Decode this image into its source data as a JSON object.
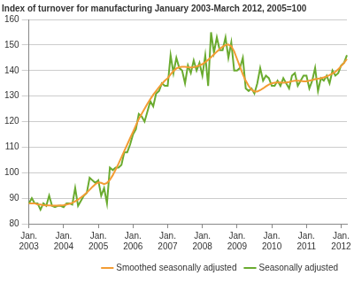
{
  "chart_data": {
    "type": "line",
    "title": "Index of turnover for manufacturing January 2003-March 2012, 2005=100",
    "categories": [
      "Jan. 2003",
      null,
      null,
      null,
      null,
      null,
      null,
      null,
      null,
      null,
      null,
      null,
      "Jan. 2004",
      null,
      null,
      null,
      null,
      null,
      null,
      null,
      null,
      null,
      null,
      null,
      "Jan. 2005",
      null,
      null,
      null,
      null,
      null,
      null,
      null,
      null,
      null,
      null,
      null,
      "Jan. 2006",
      null,
      null,
      null,
      null,
      null,
      null,
      null,
      null,
      null,
      null,
      null,
      "Jan. 2007",
      null,
      null,
      null,
      null,
      null,
      null,
      null,
      null,
      null,
      null,
      null,
      "Jan. 2008",
      null,
      null,
      null,
      null,
      null,
      null,
      null,
      null,
      null,
      null,
      null,
      "Jan. 2009",
      null,
      null,
      null,
      null,
      null,
      null,
      null,
      null,
      null,
      null,
      null,
      "Jan. 2010",
      null,
      null,
      null,
      null,
      null,
      null,
      null,
      null,
      null,
      null,
      null,
      "Jan. 2011",
      null,
      null,
      null,
      null,
      null,
      null,
      null,
      null,
      null,
      null,
      null,
      "Jan. 2012",
      null,
      null
    ],
    "series": [
      {
        "name": "Smoothed seasonally adjusted",
        "color": "#f39c34",
        "marker": "none",
        "line_style": "solid",
        "values": [
          88,
          88,
          88,
          87.5,
          87.5,
          87.3,
          87.2,
          87.2,
          87.1,
          87.1,
          87.1,
          87.2,
          87.3,
          87.5,
          87.8,
          88.2,
          88.8,
          89.5,
          90.3,
          91.2,
          92.2,
          93.3,
          94.5,
          95.5,
          96.2,
          96,
          95.5,
          96,
          97.2,
          99,
          101.2,
          103.5,
          106,
          108.5,
          111,
          113.5,
          116,
          118.5,
          121,
          123,
          125,
          127,
          128.8,
          130.5,
          132,
          133.5,
          134.8,
          136,
          137,
          138.5,
          139.8,
          140.8,
          141.3,
          141.5,
          141.5,
          141.3,
          141.2,
          141.3,
          141.6,
          142,
          142.5,
          143.3,
          144.2,
          145.2,
          146.3,
          147.4,
          148.4,
          149.3,
          150,
          150.2,
          149.5,
          147.5,
          144.5,
          141.5,
          138.5,
          136,
          134,
          132.5,
          131.8,
          131.8,
          132.3,
          133,
          133.8,
          134.5,
          135,
          135.2,
          135.3,
          135.3,
          135.2,
          135.3,
          135.5,
          135.8,
          136,
          136,
          135.9,
          135.8,
          135.8,
          136,
          136.3,
          136.6,
          136.8,
          137,
          137.3,
          137.7,
          138.2,
          138.8,
          139.5,
          140.5,
          141.8,
          143,
          144.5
        ]
      },
      {
        "name": "Seasonally adjusted",
        "color": "#6aab2f",
        "marker": "none",
        "line_style": "solid",
        "values": [
          88,
          90,
          88,
          88,
          85.5,
          88,
          87,
          91,
          87,
          86.5,
          87,
          87,
          86.5,
          88,
          88,
          87.5,
          94,
          87,
          89,
          91,
          92,
          98,
          97,
          96,
          97,
          91,
          94,
          88,
          102,
          101,
          102,
          102,
          103,
          108,
          108,
          111,
          115,
          117,
          123,
          122,
          120,
          124,
          128,
          126,
          131,
          132,
          135,
          134,
          134,
          146,
          139,
          145,
          141,
          140,
          135,
          142,
          139,
          144,
          140,
          143,
          138,
          146,
          134,
          155,
          147,
          153,
          148,
          148,
          153,
          145,
          151,
          140,
          140,
          141,
          145,
          133,
          132,
          133,
          131,
          135,
          141,
          136,
          138,
          137,
          134,
          134,
          136,
          134,
          137,
          135,
          133,
          138,
          139,
          134,
          136,
          138,
          138,
          133,
          136,
          141,
          132,
          137,
          136,
          138,
          135,
          140,
          138,
          139,
          142,
          143,
          146
        ]
      }
    ],
    "ylim": [
      80,
      160
    ],
    "yticks": [
      80,
      90,
      100,
      110,
      120,
      130,
      140,
      150,
      160
    ],
    "grid": true,
    "legend": "bottom"
  }
}
